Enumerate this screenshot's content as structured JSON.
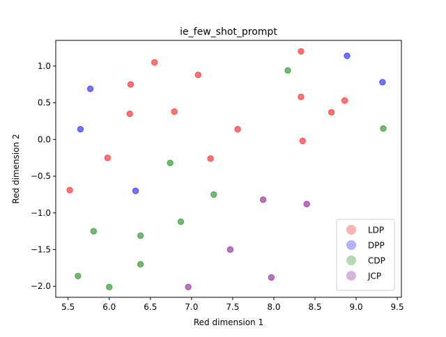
{
  "chart_data": {
    "type": "scatter",
    "title": "ie_few_shot_prompt",
    "xlabel": "Red dimension 1",
    "ylabel": "Red dimension 2",
    "xlim": [
      5.35,
      9.55
    ],
    "ylim": [
      -2.15,
      1.35
    ],
    "xticks": [
      5.5,
      6.0,
      6.5,
      7.0,
      7.5,
      8.0,
      8.5,
      9.0,
      9.5
    ],
    "xtick_labels": [
      "5.5",
      "6.0",
      "6.5",
      "7.0",
      "7.5",
      "8.0",
      "8.5",
      "9.0",
      "9.5"
    ],
    "yticks": [
      -2.0,
      -1.5,
      -1.0,
      -0.5,
      0.0,
      0.5,
      1.0
    ],
    "ytick_labels": [
      "−2.0",
      "−1.5",
      "−1.0",
      "−0.5",
      "0.0",
      "0.5",
      "1.0"
    ],
    "grid": false,
    "legend_position": "lower-right",
    "series": [
      {
        "name": "LDP",
        "color": "#ff0000",
        "points": [
          [
            5.52,
            -0.69
          ],
          [
            5.98,
            -0.25
          ],
          [
            6.25,
            0.35
          ],
          [
            6.26,
            0.75
          ],
          [
            6.55,
            1.05
          ],
          [
            6.79,
            0.38
          ],
          [
            7.08,
            0.88
          ],
          [
            7.23,
            -0.26
          ],
          [
            7.56,
            0.14
          ],
          [
            8.33,
            1.2
          ],
          [
            8.33,
            0.58
          ],
          [
            8.35,
            -0.02
          ],
          [
            8.7,
            0.37
          ],
          [
            8.86,
            0.53
          ]
        ]
      },
      {
        "name": "DPP",
        "color": "#0000ff",
        "points": [
          [
            5.65,
            0.14
          ],
          [
            5.77,
            0.69
          ],
          [
            6.32,
            -0.7
          ],
          [
            8.89,
            1.14
          ],
          [
            9.32,
            0.78
          ]
        ]
      },
      {
        "name": "CDP",
        "color": "#008000",
        "points": [
          [
            5.62,
            -1.86
          ],
          [
            5.81,
            -1.25
          ],
          [
            6.0,
            -2.01
          ],
          [
            6.38,
            -1.31
          ],
          [
            6.38,
            -1.7
          ],
          [
            6.74,
            -0.32
          ],
          [
            6.87,
            -1.12
          ],
          [
            7.27,
            -0.75
          ],
          [
            8.17,
            0.94
          ],
          [
            9.33,
            0.15
          ]
        ]
      },
      {
        "name": "JCP",
        "color": "#800080",
        "points": [
          [
            6.96,
            -2.01
          ],
          [
            7.47,
            -1.5
          ],
          [
            7.87,
            -0.82
          ],
          [
            7.97,
            -1.88
          ],
          [
            8.4,
            -0.88
          ]
        ]
      }
    ]
  }
}
